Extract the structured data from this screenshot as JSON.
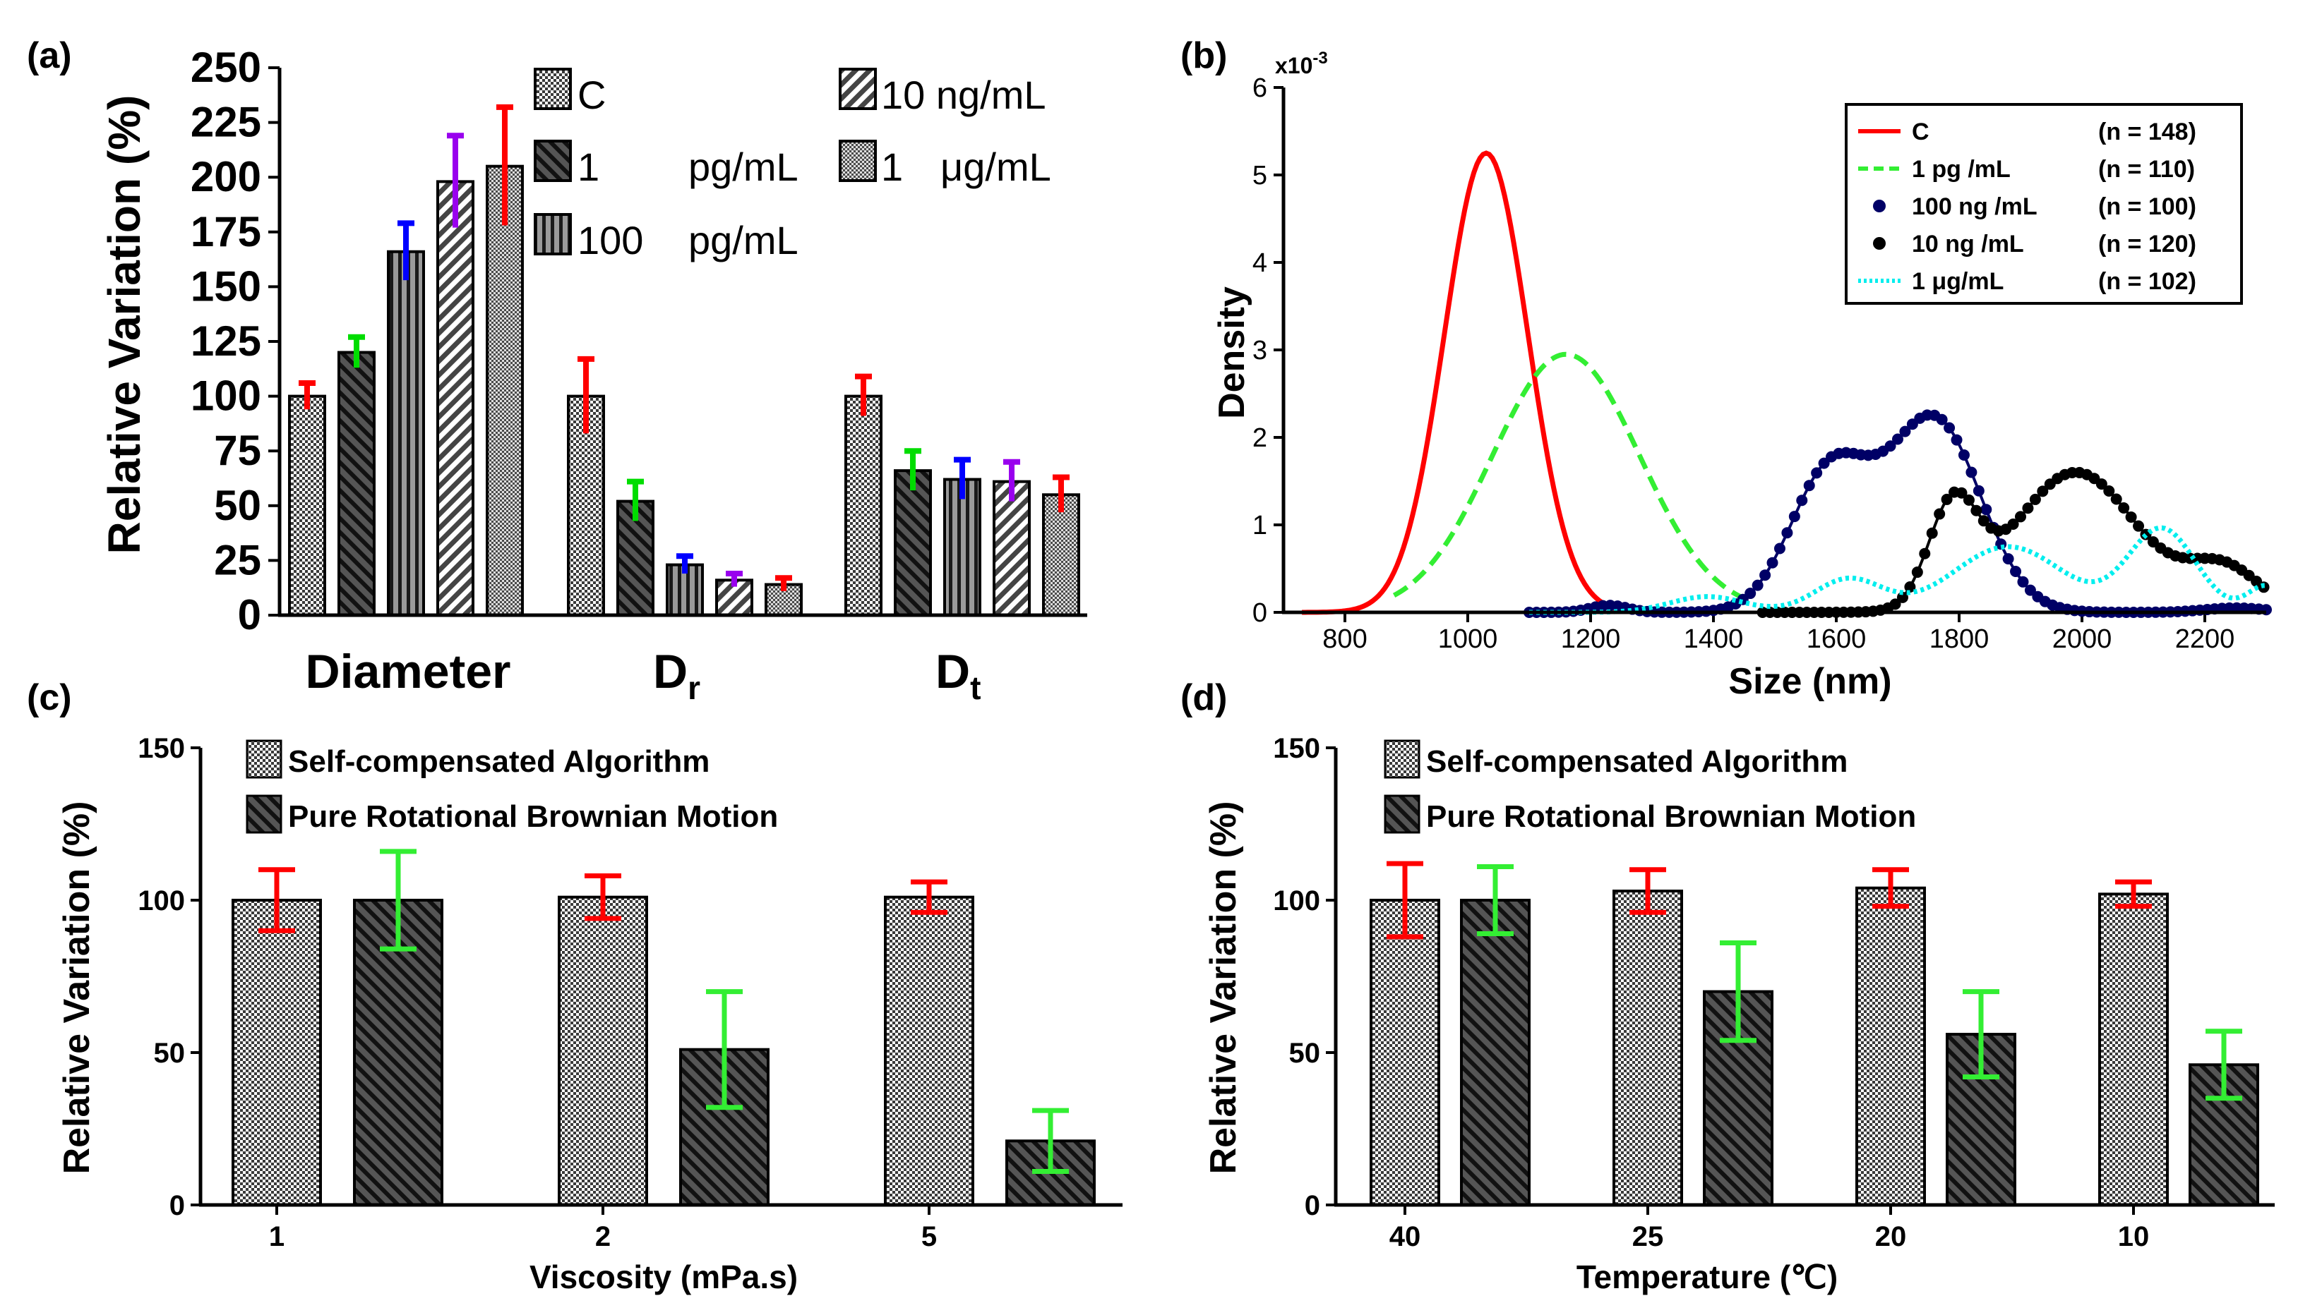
{
  "figure": {
    "panel_labels": [
      "(a)",
      "(b)",
      "(c)",
      "(d)"
    ]
  },
  "chart_data": [
    {
      "id": "a",
      "type": "bar",
      "ylabel": "Relative Variation (%)",
      "ylim": [
        0,
        250
      ],
      "yticks": [
        0,
        25,
        50,
        75,
        100,
        125,
        150,
        175,
        200,
        225,
        250
      ],
      "groups": [
        {
          "label": "Diameter",
          "label_main": "Diameter",
          "label_sub": ""
        },
        {
          "label": "Dr",
          "label_main": "D",
          "label_sub": "r"
        },
        {
          "label": "Dt",
          "label_main": "D",
          "label_sub": "t"
        }
      ],
      "series": [
        {
          "name": "C",
          "legend_name": "C",
          "legend_unit": "",
          "pattern": "checker",
          "err_color": "#ff0000",
          "values": [
            100,
            100,
            100
          ],
          "errors": [
            6,
            17,
            9
          ]
        },
        {
          "name": "1 pg/mL",
          "legend_name": "1",
          "legend_unit": "pg/mL",
          "pattern": "diag-back",
          "err_color": "#00dd00",
          "values": [
            120,
            52,
            66
          ],
          "errors": [
            7,
            9,
            9
          ]
        },
        {
          "name": "100 pg/mL",
          "legend_name": "100",
          "legend_unit": "pg/mL",
          "pattern": "vertical",
          "err_color": "#0000ff",
          "values": [
            166,
            23,
            62
          ],
          "errors": [
            13,
            4,
            9
          ]
        },
        {
          "name": "10 ng/mL",
          "legend_name": "10 ng/mL",
          "legend_unit": "",
          "pattern": "diag-fwd",
          "err_color": "#9900ee",
          "values": [
            198,
            16,
            61
          ],
          "errors": [
            21,
            3,
            9
          ]
        },
        {
          "name": "1 μg/mL",
          "legend_name": "1",
          "legend_unit": "μg/mL",
          "pattern": "checker-fine",
          "err_color": "#ff0000",
          "values": [
            205,
            14,
            55
          ],
          "errors": [
            27,
            3,
            8
          ]
        }
      ]
    },
    {
      "id": "b",
      "type": "line",
      "xlabel": "Size (nm)",
      "ylabel": "Density",
      "yscale_label": "x10",
      "yscale_exp": "-3",
      "xlim": [
        700,
        2300
      ],
      "ylim": [
        0,
        6
      ],
      "xticks": [
        800,
        1000,
        1200,
        1400,
        1600,
        1800,
        2000,
        2200
      ],
      "yticks": [
        0,
        1,
        2,
        3,
        4,
        5,
        6
      ],
      "series": [
        {
          "name": "C",
          "n_label": "(n = 148)",
          "color": "#ff0000",
          "style": "solid",
          "components": [
            [
              1030,
              68,
              5.25
            ]
          ],
          "x_range": [
            730,
            1280
          ]
        },
        {
          "name": "1 pg /mL",
          "n_label": "(n = 110)",
          "color": "#33ee33",
          "style": "dashed",
          "components": [
            [
              1160,
              120,
              2.95
            ]
          ],
          "x_range": [
            880,
            1450
          ]
        },
        {
          "name": "100 ng /mL",
          "n_label": "(n = 100)",
          "color": "#000066",
          "style": "dots",
          "components": [
            [
              1590,
              65,
              1.6
            ],
            [
              1760,
              75,
              2.2
            ],
            [
              1230,
              30,
              0.08
            ],
            [
              2250,
              50,
              0.05
            ]
          ],
          "x_range": [
            1100,
            2300
          ]
        },
        {
          "name": "10 ng /mL",
          "n_label": "(n = 120)",
          "color": "#000000",
          "style": "dots",
          "components": [
            [
              1790,
              40,
              1.15
            ],
            [
              1990,
              100,
              1.6
            ],
            [
              2230,
              60,
              0.5
            ]
          ],
          "x_range": [
            1480,
            2300
          ]
        },
        {
          "name": "1 μg/mL",
          "n_label": "(n = 102)",
          "color": "#00eeee",
          "style": "dotted",
          "components": [
            [
              1390,
              60,
              0.18
            ],
            [
              1620,
              55,
              0.38
            ],
            [
              1880,
              90,
              0.75
            ],
            [
              2130,
              55,
              0.95
            ],
            [
              2300,
              30,
              0.3
            ]
          ],
          "x_range": [
            1100,
            2300
          ]
        }
      ]
    },
    {
      "id": "c",
      "type": "bar",
      "xlabel": "Viscosity (mPa.s)",
      "ylabel": "Relative Variation (%)",
      "ylim": [
        0,
        150
      ],
      "yticks": [
        0,
        50,
        100,
        150
      ],
      "categories": [
        "1",
        "2",
        "5"
      ],
      "series": [
        {
          "name": "Self-compensated Algorithm",
          "pattern": "checker",
          "err_color": "#ff0000",
          "values": [
            100,
            101,
            101
          ],
          "errors": [
            10,
            7,
            5
          ]
        },
        {
          "name": "Pure Rotational Brownian Motion",
          "pattern": "diag-back",
          "err_color": "#33ee33",
          "values": [
            100,
            51,
            21
          ],
          "errors": [
            16,
            19,
            10
          ]
        }
      ]
    },
    {
      "id": "d",
      "type": "bar",
      "xlabel": "Temperature (℃)",
      "ylabel": "Relative Variation (%)",
      "ylim": [
        0,
        150
      ],
      "yticks": [
        0,
        50,
        100,
        150
      ],
      "categories": [
        "40",
        "25",
        "20",
        "10"
      ],
      "series": [
        {
          "name": "Self-compensated Algorithm",
          "pattern": "checker",
          "err_color": "#ff0000",
          "values": [
            100,
            103,
            104,
            102
          ],
          "errors": [
            12,
            7,
            6,
            4
          ]
        },
        {
          "name": "Pure Rotational Brownian Motion",
          "pattern": "diag-back",
          "err_color": "#33ee33",
          "values": [
            100,
            70,
            56,
            46
          ],
          "errors": [
            11,
            16,
            14,
            11
          ]
        }
      ]
    }
  ]
}
